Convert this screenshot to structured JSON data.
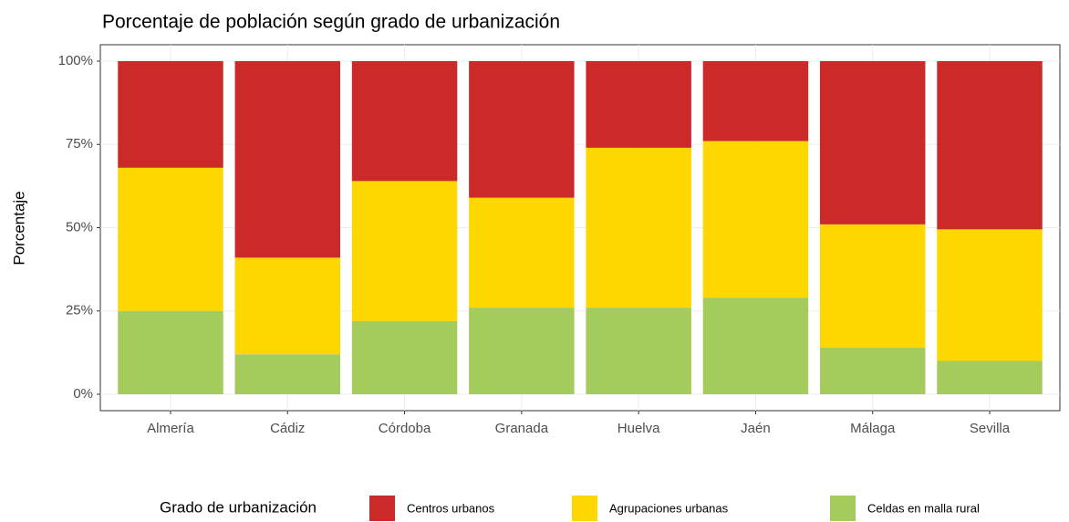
{
  "chart_data": {
    "type": "stacked_bar",
    "title": "Porcentaje de población según grado de urbanización",
    "y_label": "Porcentaje",
    "legend_title": "Grado de urbanización",
    "legend_position": "bottom",
    "grid": true,
    "categories": [
      "Almería",
      "Cádiz",
      "Córdoba",
      "Granada",
      "Huelva",
      "Jaén",
      "Málaga",
      "Sevilla"
    ],
    "series": [
      {
        "name": "Centros urbanos",
        "color": "#cc2929",
        "values": [
          32,
          59,
          36,
          41,
          26,
          24,
          49,
          50.5
        ]
      },
      {
        "name": "Agrupaciones urbanas",
        "color": "#ffd700",
        "values": [
          43,
          29,
          42,
          33,
          48,
          47,
          37,
          39.5
        ]
      },
      {
        "name": "Celdas en malla rural",
        "color": "#a3cc5c",
        "values": [
          25,
          12,
          22,
          26,
          26,
          29,
          14,
          10
        ]
      }
    ],
    "ylim": [
      0,
      100
    ],
    "yticks": [
      {
        "value": 0,
        "label": "0%"
      },
      {
        "value": 25,
        "label": "25%"
      },
      {
        "value": 50,
        "label": "50%"
      },
      {
        "value": 75,
        "label": "75%"
      },
      {
        "value": 100,
        "label": "100%"
      }
    ]
  }
}
